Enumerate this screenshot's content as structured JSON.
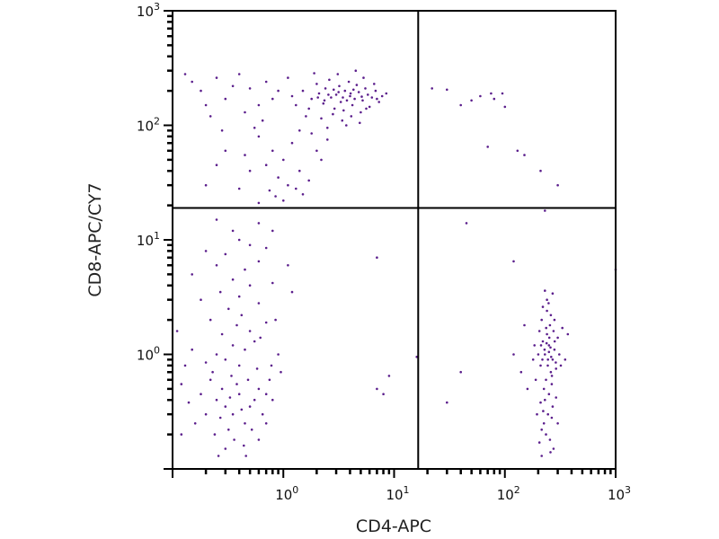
{
  "chart_data": {
    "type": "scatter",
    "title": "",
    "xlabel": "CD4-APC",
    "ylabel": "CD8-APC/CY7",
    "xscale": "log",
    "yscale": "log",
    "xlim": [
      0.1,
      1000
    ],
    "ylim": [
      0.1,
      1000
    ],
    "x_tick_labels": [
      {
        "value": 1,
        "base": "10",
        "exp": "0"
      },
      {
        "value": 10,
        "base": "10",
        "exp": "1"
      },
      {
        "value": 100,
        "base": "10",
        "exp": "2"
      },
      {
        "value": 1000,
        "base": "10",
        "exp": "3"
      }
    ],
    "y_tick_labels": [
      {
        "value": 1,
        "base": "10",
        "exp": "0"
      },
      {
        "value": 10,
        "base": "10",
        "exp": "1"
      },
      {
        "value": 100,
        "base": "10",
        "exp": "2"
      },
      {
        "value": 1000,
        "base": "10",
        "exp": "3"
      }
    ],
    "quadrant_gates": {
      "x": 16.5,
      "y": 19
    },
    "grid": false,
    "point_color": "#5b1e8c",
    "points": [
      [
        1.2,
        180
      ],
      [
        1.5,
        200
      ],
      [
        1.8,
        170
      ],
      [
        2.1,
        190
      ],
      [
        2.4,
        210
      ],
      [
        2.7,
        175
      ],
      [
        3.0,
        185
      ],
      [
        3.3,
        160
      ],
      [
        3.6,
        200
      ],
      [
        4.0,
        180
      ],
      [
        4.4,
        170
      ],
      [
        4.8,
        195
      ],
      [
        5.2,
        165
      ],
      [
        5.8,
        185
      ],
      [
        6.3,
        175
      ],
      [
        7.0,
        170
      ],
      [
        7.8,
        180
      ],
      [
        8.5,
        190
      ],
      [
        1.3,
        150
      ],
      [
        1.7,
        140
      ],
      [
        2.0,
        230
      ],
      [
        2.3,
        155
      ],
      [
        2.6,
        250
      ],
      [
        2.9,
        140
      ],
      [
        3.2,
        220
      ],
      [
        3.5,
        135
      ],
      [
        3.9,
        240
      ],
      [
        4.2,
        150
      ],
      [
        4.6,
        225
      ],
      [
        5.0,
        130
      ],
      [
        5.5,
        210
      ],
      [
        6.0,
        145
      ],
      [
        6.6,
        230
      ],
      [
        7.3,
        160
      ],
      [
        1.1,
        260
      ],
      [
        1.6,
        120
      ],
      [
        2.2,
        115
      ],
      [
        2.8,
        125
      ],
      [
        3.4,
        110
      ],
      [
        4.1,
        120
      ],
      [
        4.9,
        105
      ],
      [
        5.6,
        140
      ],
      [
        3.1,
        280
      ],
      [
        1.9,
        285
      ],
      [
        4.5,
        300
      ],
      [
        5.3,
        260
      ],
      [
        6.8,
        200
      ],
      [
        2.5,
        95
      ],
      [
        1.4,
        90
      ],
      [
        3.7,
        100
      ],
      [
        2.05,
        175
      ],
      [
        2.55,
        185
      ],
      [
        3.15,
        195
      ],
      [
        3.75,
        165
      ],
      [
        4.3,
        205
      ],
      [
        2.35,
        165
      ],
      [
        2.85,
        205
      ],
      [
        3.45,
        175
      ],
      [
        4.05,
        190
      ],
      [
        5.1,
        178
      ],
      [
        0.9,
        200
      ],
      [
        0.8,
        170
      ],
      [
        0.7,
        240
      ],
      [
        0.6,
        150
      ],
      [
        0.5,
        210
      ],
      [
        0.45,
        130
      ],
      [
        0.35,
        220
      ],
      [
        0.3,
        170
      ],
      [
        0.25,
        260
      ],
      [
        0.22,
        120
      ],
      [
        0.18,
        200
      ],
      [
        0.15,
        240
      ],
      [
        0.13,
        280
      ],
      [
        0.4,
        280
      ],
      [
        0.55,
        95
      ],
      [
        0.65,
        110
      ],
      [
        0.28,
        90
      ],
      [
        0.2,
        150
      ],
      [
        0.6,
        80
      ],
      [
        0.8,
        60
      ],
      [
        1.0,
        50
      ],
      [
        1.2,
        70
      ],
      [
        0.7,
        45
      ],
      [
        0.9,
        35
      ],
      [
        1.1,
        30
      ],
      [
        1.3,
        28
      ],
      [
        1.5,
        25
      ],
      [
        1.7,
        33
      ],
      [
        0.5,
        40
      ],
      [
        0.45,
        55
      ],
      [
        0.3,
        60
      ],
      [
        0.25,
        45
      ],
      [
        0.2,
        30
      ],
      [
        1.0,
        22
      ],
      [
        0.85,
        24
      ],
      [
        1.4,
        40
      ],
      [
        2.0,
        60
      ],
      [
        2.5,
        75
      ],
      [
        1.8,
        85
      ],
      [
        0.4,
        28
      ],
      [
        0.6,
        21
      ],
      [
        0.75,
        27
      ],
      [
        2.2,
        50
      ],
      [
        0.3,
        0.35
      ],
      [
        0.25,
        0.4
      ],
      [
        0.35,
        0.3
      ],
      [
        0.28,
        0.5
      ],
      [
        0.4,
        0.45
      ],
      [
        0.2,
        0.3
      ],
      [
        0.45,
        0.25
      ],
      [
        0.32,
        0.22
      ],
      [
        0.22,
        0.6
      ],
      [
        0.5,
        0.35
      ],
      [
        0.55,
        0.4
      ],
      [
        0.38,
        0.55
      ],
      [
        0.27,
        0.28
      ],
      [
        0.33,
        0.42
      ],
      [
        0.42,
        0.33
      ],
      [
        0.18,
        0.45
      ],
      [
        0.6,
        0.5
      ],
      [
        0.48,
        0.6
      ],
      [
        0.24,
        0.2
      ],
      [
        0.36,
        0.18
      ],
      [
        0.3,
        0.15
      ],
      [
        0.44,
        0.16
      ],
      [
        0.52,
        0.22
      ],
      [
        0.16,
        0.25
      ],
      [
        0.14,
        0.38
      ],
      [
        0.12,
        0.55
      ],
      [
        0.65,
        0.3
      ],
      [
        0.7,
        0.45
      ],
      [
        0.75,
        0.6
      ],
      [
        0.58,
        0.75
      ],
      [
        0.4,
        0.8
      ],
      [
        0.3,
        0.9
      ],
      [
        0.2,
        0.85
      ],
      [
        0.25,
        1.0
      ],
      [
        0.35,
        1.2
      ],
      [
        0.45,
        1.1
      ],
      [
        0.55,
        1.3
      ],
      [
        0.15,
        1.1
      ],
      [
        0.28,
        1.5
      ],
      [
        0.38,
        1.8
      ],
      [
        0.5,
        1.6
      ],
      [
        0.62,
        1.4
      ],
      [
        0.7,
        1.9
      ],
      [
        0.22,
        2.0
      ],
      [
        0.32,
        2.5
      ],
      [
        0.42,
        2.2
      ],
      [
        0.6,
        2.8
      ],
      [
        0.18,
        3.0
      ],
      [
        0.27,
        3.5
      ],
      [
        0.4,
        3.2
      ],
      [
        0.5,
        4.0
      ],
      [
        0.35,
        4.5
      ],
      [
        0.15,
        5.0
      ],
      [
        0.25,
        6.0
      ],
      [
        0.45,
        5.5
      ],
      [
        0.6,
        6.5
      ],
      [
        0.3,
        7.5
      ],
      [
        0.2,
        8.0
      ],
      [
        0.5,
        9.0
      ],
      [
        0.7,
        8.5
      ],
      [
        0.4,
        10
      ],
      [
        0.8,
        4.2
      ],
      [
        0.85,
        2.0
      ],
      [
        0.9,
        1.0
      ],
      [
        0.95,
        0.7
      ],
      [
        0.8,
        0.4
      ],
      [
        0.7,
        0.25
      ],
      [
        0.13,
        0.8
      ],
      [
        0.11,
        1.6
      ],
      [
        0.12,
        0.2
      ],
      [
        0.26,
        0.13
      ],
      [
        0.46,
        0.13
      ],
      [
        0.34,
        0.65
      ],
      [
        0.23,
        0.7
      ],
      [
        0.6,
        0.18
      ],
      [
        0.78,
        0.8
      ],
      [
        1.1,
        6
      ],
      [
        1.2,
        3.5
      ],
      [
        0.35,
        12
      ],
      [
        0.6,
        14
      ],
      [
        0.25,
        15
      ],
      [
        0.8,
        12
      ],
      [
        230,
        1.0
      ],
      [
        250,
        1.2
      ],
      [
        210,
        0.8
      ],
      [
        270,
        0.9
      ],
      [
        240,
        1.5
      ],
      [
        260,
        0.7
      ],
      [
        220,
        1.3
      ],
      [
        280,
        1.1
      ],
      [
        200,
        1.0
      ],
      [
        300,
        1.4
      ],
      [
        235,
        0.6
      ],
      [
        255,
        1.8
      ],
      [
        215,
        2.0
      ],
      [
        275,
        1.6
      ],
      [
        245,
        0.9
      ],
      [
        225,
        0.5
      ],
      [
        265,
        0.55
      ],
      [
        290,
        0.75
      ],
      [
        205,
        1.6
      ],
      [
        310,
        1.0
      ],
      [
        240,
        2.4
      ],
      [
        260,
        2.2
      ],
      [
        220,
        2.6
      ],
      [
        280,
        2.0
      ],
      [
        250,
        0.45
      ],
      [
        230,
        0.4
      ],
      [
        270,
        0.35
      ],
      [
        210,
        0.38
      ],
      [
        290,
        0.42
      ],
      [
        245,
        0.3
      ],
      [
        225,
        0.25
      ],
      [
        265,
        0.28
      ],
      [
        235,
        0.2
      ],
      [
        255,
        0.18
      ],
      [
        215,
        0.22
      ],
      [
        275,
        0.15
      ],
      [
        205,
        0.17
      ],
      [
        300,
        0.25
      ],
      [
        190,
        0.6
      ],
      [
        185,
        1.2
      ],
      [
        320,
        0.8
      ],
      [
        330,
        1.7
      ],
      [
        195,
        0.3
      ],
      [
        180,
        0.9
      ],
      [
        240,
        3.0
      ],
      [
        270,
        3.4
      ],
      [
        230,
        3.6
      ],
      [
        250,
        1.05
      ],
      [
        238,
        1.25
      ],
      [
        262,
        0.95
      ],
      [
        228,
        1.1
      ],
      [
        252,
        1.4
      ],
      [
        244,
        0.8
      ],
      [
        258,
        1.15
      ],
      [
        218,
        0.9
      ],
      [
        282,
        1.3
      ],
      [
        236,
        1.7
      ],
      [
        266,
        0.65
      ],
      [
        212,
        1.2
      ],
      [
        288,
        0.85
      ],
      [
        248,
        2.8
      ],
      [
        222,
        0.32
      ],
      [
        258,
        0.14
      ],
      [
        215,
        0.13
      ],
      [
        350,
        0.9
      ],
      [
        370,
        1.5
      ],
      [
        120,
        1.0
      ],
      [
        150,
        1.8
      ],
      [
        160,
        0.5
      ],
      [
        140,
        0.7
      ],
      [
        40,
        0.7
      ],
      [
        30,
        0.38
      ],
      [
        7,
        0.5
      ],
      [
        9,
        0.65
      ],
      [
        8,
        0.45
      ],
      [
        120,
        6.5
      ],
      [
        1000,
        5.5
      ],
      [
        16,
        0.95
      ],
      [
        7,
        7
      ],
      [
        45,
        14
      ],
      [
        22,
        210
      ],
      [
        30,
        205
      ],
      [
        40,
        150
      ],
      [
        50,
        165
      ],
      [
        60,
        180
      ],
      [
        75,
        190
      ],
      [
        70,
        65
      ],
      [
        80,
        170
      ],
      [
        95,
        190
      ],
      [
        100,
        145
      ],
      [
        130,
        60
      ],
      [
        150,
        55
      ],
      [
        210,
        40
      ],
      [
        300,
        30
      ],
      [
        230,
        18
      ]
    ]
  }
}
